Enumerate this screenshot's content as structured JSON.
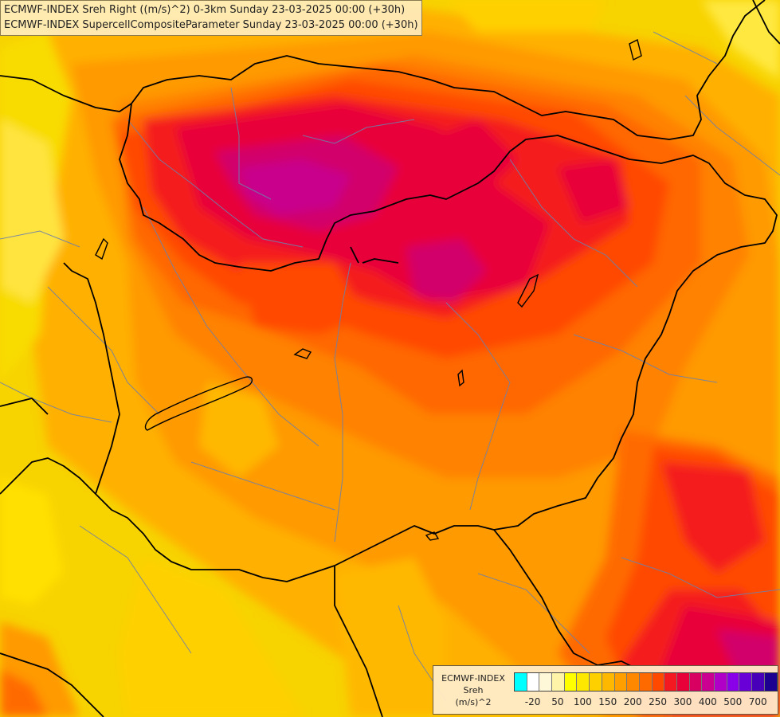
{
  "header": {
    "line1": "ECMWF-INDEX Sreh Right ((m/s)^2) 0-3km Sunday 23-03-2025 00:00 (+30h)",
    "line2": "ECMWF-INDEX SupercellCompositeParameter Sunday 23-03-2025 00:00 (+30h)"
  },
  "legend": {
    "model": "ECMWF-INDEX",
    "parameter": "Sreh",
    "unit": "(m/s)^2",
    "colors": [
      "#00ffff",
      "#ffffff",
      "#fff8d8",
      "#fff4a8",
      "#ffff00",
      "#ffe800",
      "#ffd000",
      "#ffb800",
      "#ffa000",
      "#ff8800",
      "#ff6a00",
      "#ff4800",
      "#f41820",
      "#e80038",
      "#d80060",
      "#cc0090",
      "#b000c8",
      "#8a00e8",
      "#6a00d8",
      "#4800b8",
      "#1e0090"
    ],
    "ticks": [
      {
        "label": "-20",
        "index": 1
      },
      {
        "label": "50",
        "index": 3
      },
      {
        "label": "100",
        "index": 5
      },
      {
        "label": "150",
        "index": 7
      },
      {
        "label": "200",
        "index": 9
      },
      {
        "label": "250",
        "index": 11
      },
      {
        "label": "300",
        "index": 13
      },
      {
        "label": "400",
        "index": 15
      },
      {
        "label": "500",
        "index": 17
      },
      {
        "label": "700",
        "index": 19
      }
    ]
  }
}
